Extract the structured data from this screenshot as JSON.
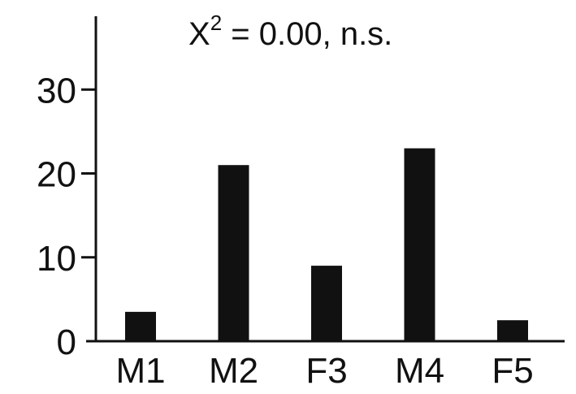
{
  "chart_data": {
    "type": "bar",
    "title_main": "X",
    "title_sup": "2",
    "title_rest": " = 0.00, n.s.",
    "categories": [
      "M1",
      "M2",
      "F3",
      "M4",
      "F5"
    ],
    "values": [
      3.5,
      21,
      9,
      23,
      2.5
    ],
    "yticks": [
      "0",
      "10",
      "20",
      "30"
    ],
    "ylim": [
      0,
      34
    ],
    "xlabel": "",
    "ylabel": "",
    "grid": false,
    "colors": {
      "bar": "#111111",
      "axis": "#111111"
    }
  }
}
